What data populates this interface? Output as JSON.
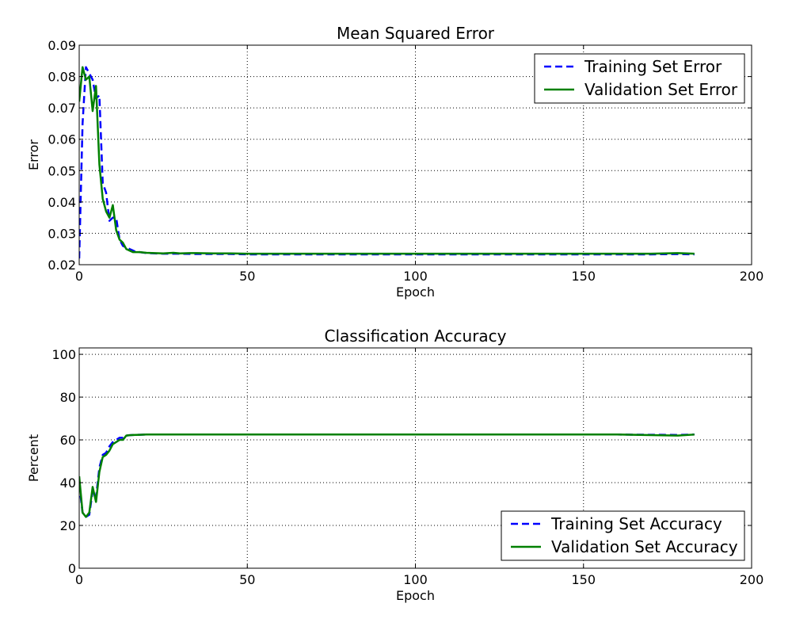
{
  "chart_data": [
    {
      "type": "line",
      "title": "Mean Squared Error",
      "xlabel": "Epoch",
      "ylabel": "Error",
      "xlim": [
        0,
        200
      ],
      "ylim": [
        0.02,
        0.09
      ],
      "xticks": [
        0,
        50,
        100,
        150,
        200
      ],
      "xtick_labels": [
        "0",
        "50",
        "100",
        "150",
        "200"
      ],
      "yticks": [
        0.02,
        0.03,
        0.04,
        0.05,
        0.06,
        0.07,
        0.08,
        0.09
      ],
      "ytick_labels": [
        "0.02",
        "0.03",
        "0.04",
        "0.05",
        "0.06",
        "0.07",
        "0.08",
        "0.09"
      ],
      "grid": true,
      "legend_position": "top-right",
      "series": [
        {
          "name": "Training Set Error",
          "color": "#0000ff",
          "style": "dashed",
          "x": [
            0,
            1,
            2,
            3,
            4,
            5,
            6,
            7,
            8,
            9,
            10,
            11,
            12,
            13,
            14,
            15,
            16,
            17,
            18,
            20,
            25,
            30,
            35,
            40,
            45,
            50,
            60,
            70,
            80,
            90,
            100,
            110,
            120,
            130,
            140,
            150,
            160,
            170,
            178,
            183
          ],
          "y": [
            0.022,
            0.065,
            0.083,
            0.081,
            0.079,
            0.073,
            0.074,
            0.046,
            0.043,
            0.034,
            0.035,
            0.035,
            0.028,
            0.026,
            0.0255,
            0.025,
            0.0245,
            0.024,
            0.024,
            0.0237,
            0.0235,
            0.0235,
            0.0234,
            0.0234,
            0.0234,
            0.0233,
            0.0233,
            0.0233,
            0.0233,
            0.0233,
            0.0233,
            0.0233,
            0.0233,
            0.0233,
            0.0233,
            0.0233,
            0.0233,
            0.0233,
            0.0234,
            0.0233
          ]
        },
        {
          "name": "Validation Set Error",
          "color": "#008000",
          "style": "solid",
          "x": [
            0,
            1,
            2,
            3,
            4,
            5,
            6,
            7,
            8,
            9,
            10,
            11,
            12,
            13,
            14,
            15,
            16,
            17,
            18,
            20,
            25,
            28,
            30,
            33,
            35,
            40,
            45,
            50,
            60,
            70,
            80,
            90,
            100,
            110,
            120,
            130,
            140,
            150,
            160,
            170,
            178,
            183
          ],
          "y": [
            0.072,
            0.083,
            0.079,
            0.08,
            0.069,
            0.077,
            0.052,
            0.041,
            0.037,
            0.035,
            0.039,
            0.031,
            0.028,
            0.027,
            0.025,
            0.0245,
            0.024,
            0.024,
            0.024,
            0.0238,
            0.0236,
            0.0238,
            0.0236,
            0.0237,
            0.0237,
            0.0236,
            0.0236,
            0.0235,
            0.0235,
            0.0235,
            0.0235,
            0.0235,
            0.0235,
            0.0235,
            0.0235,
            0.0235,
            0.0235,
            0.0235,
            0.0235,
            0.0235,
            0.0237,
            0.0235
          ]
        }
      ]
    },
    {
      "type": "line",
      "title": "Classification Accuracy",
      "xlabel": "Epoch",
      "ylabel": "Percent",
      "xlim": [
        0,
        200
      ],
      "ylim": [
        0,
        103
      ],
      "xticks": [
        0,
        50,
        100,
        150,
        200
      ],
      "xtick_labels": [
        "0",
        "50",
        "100",
        "150",
        "200"
      ],
      "yticks": [
        0,
        20,
        40,
        60,
        80,
        100
      ],
      "ytick_labels": [
        "0",
        "20",
        "40",
        "60",
        "80",
        "100"
      ],
      "grid": true,
      "legend_position": "bottom-right",
      "series": [
        {
          "name": "Training Set Accuracy",
          "color": "#0000ff",
          "style": "dashed",
          "x": [
            0,
            1,
            2,
            3,
            4,
            5,
            6,
            7,
            8,
            9,
            10,
            11,
            12,
            13,
            14,
            15,
            16,
            18,
            20,
            25,
            30,
            40,
            50,
            60,
            80,
            100,
            120,
            140,
            160,
            178,
            183
          ],
          "y": [
            39,
            26,
            24,
            25,
            36,
            33,
            47,
            53,
            54,
            57,
            59,
            60,
            61,
            61,
            62,
            62.2,
            62.3,
            62.4,
            62.5,
            62.5,
            62.5,
            62.5,
            62.5,
            62.5,
            62.5,
            62.5,
            62.5,
            62.5,
            62.5,
            62.3,
            62.5
          ]
        },
        {
          "name": "Validation Set Accuracy",
          "color": "#008000",
          "style": "solid",
          "x": [
            0,
            1,
            2,
            3,
            4,
            5,
            6,
            7,
            8,
            9,
            10,
            11,
            12,
            13,
            14,
            15,
            16,
            18,
            20,
            25,
            30,
            40,
            50,
            60,
            80,
            100,
            120,
            140,
            160,
            178,
            183
          ],
          "y": [
            43,
            26,
            24,
            26,
            38,
            31,
            45,
            52,
            53,
            55,
            58,
            59,
            60,
            60,
            62,
            62.2,
            62.3,
            62.4,
            62.5,
            62.5,
            62.5,
            62.5,
            62.5,
            62.5,
            62.5,
            62.5,
            62.5,
            62.5,
            62.5,
            62.0,
            62.5
          ]
        }
      ]
    }
  ]
}
